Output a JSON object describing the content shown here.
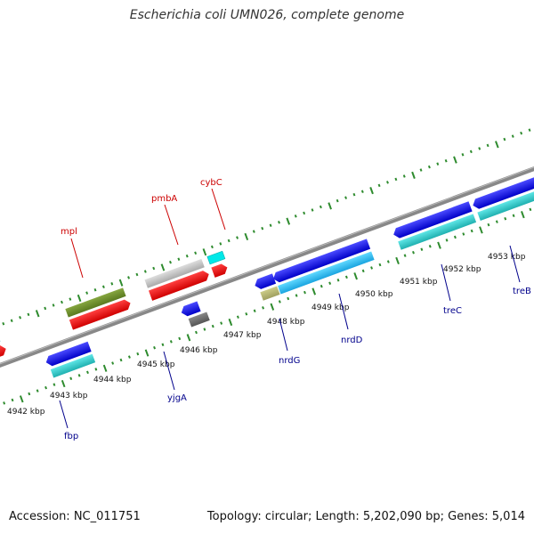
{
  "title": "Escherichia coli UMN026, complete genome",
  "accession_label": "Accession: NC_011751",
  "topology_label": "Topology: circular; Length: 5,202,090 bp; Genes: 5,014",
  "kbp_labels": [
    "4942 kbp",
    "4943 kbp",
    "4944 kbp",
    "4945 kbp",
    "4946 kbp",
    "4947 kbp",
    "4948 kbp",
    "4949 kbp",
    "4950 kbp",
    "4951 kbp",
    "4952 kbp",
    "4953 kbp"
  ],
  "genes_top": [
    "mpl",
    "pmbA",
    "cybC"
  ],
  "genes_bottom": [
    "fbp",
    "yjgA",
    "nrdG",
    "nrdD",
    "treC",
    "treB"
  ],
  "colors": {
    "backbone": "#888888",
    "tick": "#2e8b2e",
    "top_label": "#cc0000",
    "bottom_label": "#00008b"
  }
}
